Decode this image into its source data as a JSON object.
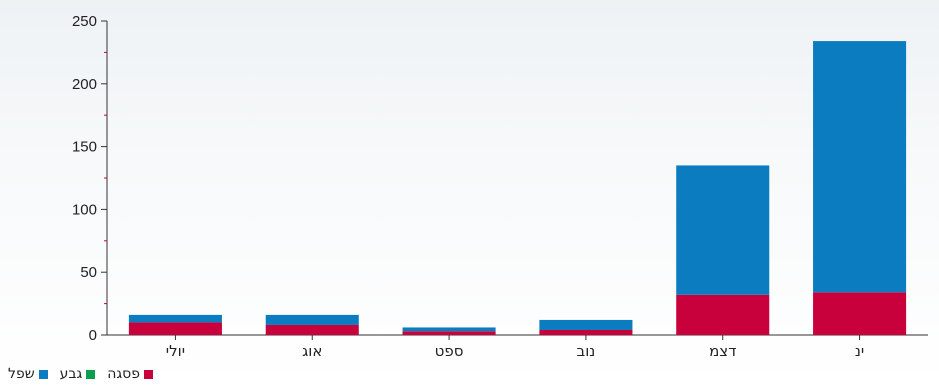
{
  "chart_data": {
    "type": "bar",
    "stacked": true,
    "categories": [
      "יולי",
      "אוג",
      "ספט",
      "נוב",
      "דצמ",
      "ינ"
    ],
    "series": [
      {
        "name": "פסגה",
        "color": "#c8003c",
        "values": [
          10,
          8,
          3,
          4,
          32,
          34
        ]
      },
      {
        "name": "גבע",
        "color": "#0aa050",
        "values": [
          0,
          0,
          0,
          0,
          0,
          0
        ]
      },
      {
        "name": "שפל",
        "color": "#0a7cbf",
        "values": [
          6,
          8,
          3,
          8,
          103,
          200
        ]
      }
    ],
    "yticks": [
      0,
      50,
      100,
      150,
      200,
      250
    ],
    "ylim": [
      0,
      250
    ],
    "title": "",
    "xlabel": "",
    "ylabel": "",
    "grid": false,
    "legend_position": "bottom-left"
  }
}
